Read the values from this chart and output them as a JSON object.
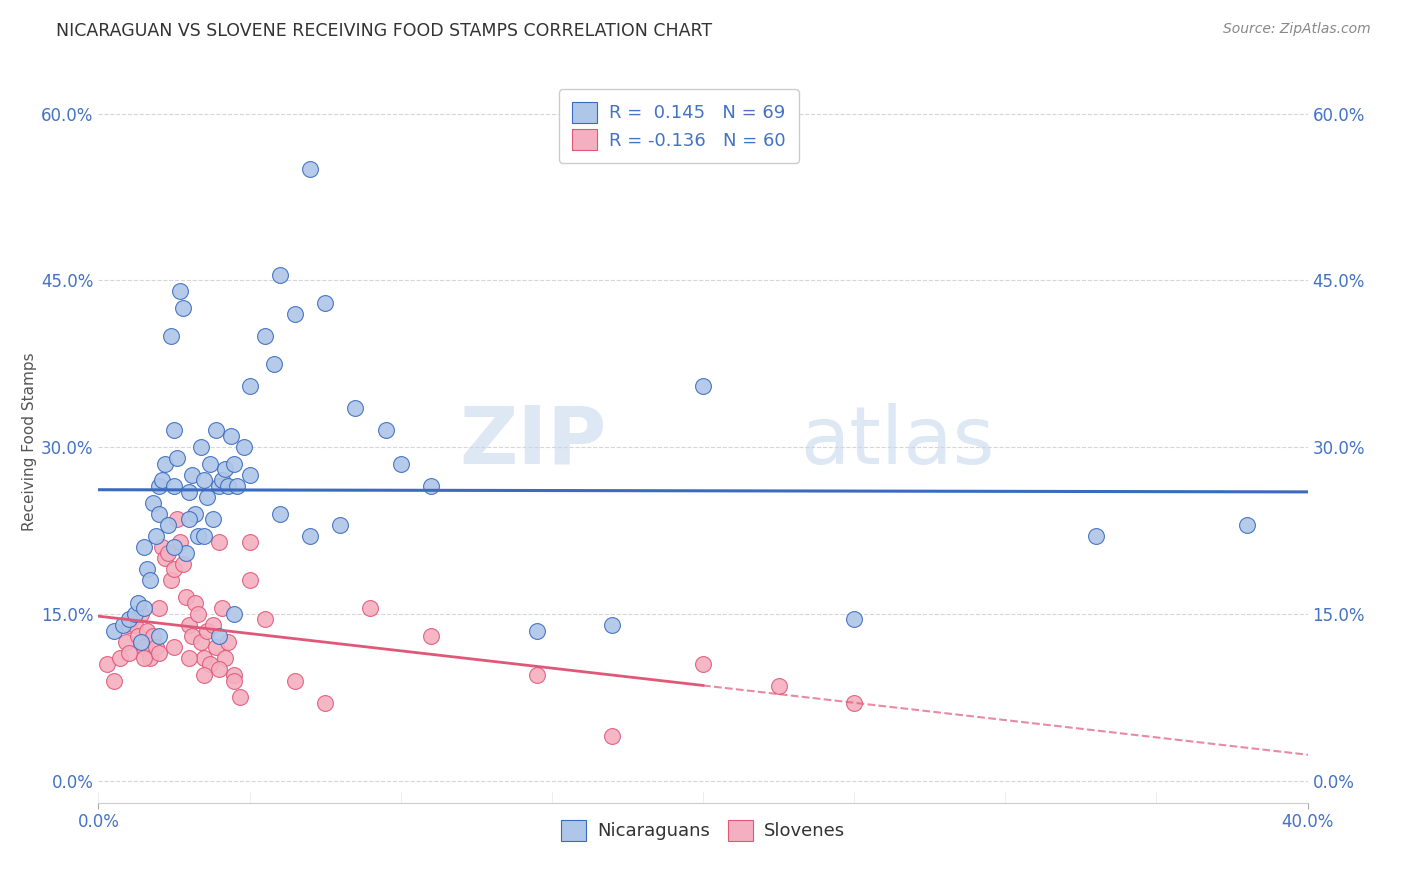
{
  "title": "NICARAGUAN VS SLOVENE RECEIVING FOOD STAMPS CORRELATION CHART",
  "source": "Source: ZipAtlas.com",
  "ylabel": "Receiving Food Stamps",
  "ytick_vals": [
    0.0,
    15.0,
    30.0,
    45.0,
    60.0
  ],
  "xmin": 0.0,
  "xmax": 40.0,
  "ymin": -2.0,
  "ymax": 63.0,
  "nicaraguan_R": 0.145,
  "nicaraguan_N": 69,
  "slovene_R": -0.136,
  "slovene_N": 60,
  "nicaraguan_color": "#aec6e8",
  "slovene_color": "#f4afc0",
  "nicaraguan_line_color": "#3a6bbf",
  "slovene_line_color": "#e05878",
  "background_color": "#ffffff",
  "grid_color": "#cccccc",
  "watermark_zip": "ZIP",
  "watermark_atlas": "atlas",
  "nicaraguan_x": [
    0.5,
    0.8,
    1.0,
    1.2,
    1.3,
    1.4,
    1.5,
    1.6,
    1.7,
    1.8,
    1.9,
    2.0,
    2.0,
    2.1,
    2.2,
    2.3,
    2.4,
    2.5,
    2.5,
    2.6,
    2.7,
    2.8,
    2.9,
    3.0,
    3.1,
    3.2,
    3.3,
    3.4,
    3.5,
    3.6,
    3.7,
    3.8,
    3.9,
    4.0,
    4.1,
    4.2,
    4.3,
    4.4,
    4.5,
    4.6,
    4.8,
    5.0,
    5.5,
    5.8,
    6.0,
    6.5,
    7.0,
    7.5,
    8.5,
    9.5,
    10.0,
    11.0,
    14.5,
    17.0,
    20.0,
    25.0,
    33.0,
    38.0,
    1.5,
    2.0,
    2.5,
    3.0,
    3.5,
    4.0,
    4.5,
    5.0,
    6.0,
    7.0,
    8.0
  ],
  "nicaraguan_y": [
    13.5,
    14.0,
    14.5,
    15.0,
    16.0,
    12.5,
    21.0,
    19.0,
    18.0,
    25.0,
    22.0,
    24.0,
    26.5,
    27.0,
    28.5,
    23.0,
    40.0,
    26.5,
    31.5,
    29.0,
    44.0,
    42.5,
    20.5,
    26.0,
    27.5,
    24.0,
    22.0,
    30.0,
    27.0,
    25.5,
    28.5,
    23.5,
    31.5,
    26.5,
    27.0,
    28.0,
    26.5,
    31.0,
    28.5,
    26.5,
    30.0,
    35.5,
    40.0,
    37.5,
    45.5,
    42.0,
    55.0,
    43.0,
    33.5,
    31.5,
    28.5,
    26.5,
    13.5,
    14.0,
    35.5,
    14.5,
    22.0,
    23.0,
    15.5,
    13.0,
    21.0,
    23.5,
    22.0,
    13.0,
    15.0,
    27.5,
    24.0,
    22.0,
    23.0
  ],
  "slovene_x": [
    0.3,
    0.5,
    0.7,
    0.9,
    1.0,
    1.1,
    1.2,
    1.3,
    1.4,
    1.5,
    1.6,
    1.7,
    1.8,
    1.9,
    2.0,
    2.1,
    2.2,
    2.3,
    2.4,
    2.5,
    2.6,
    2.7,
    2.8,
    2.9,
    3.0,
    3.1,
    3.2,
    3.3,
    3.4,
    3.5,
    3.6,
    3.7,
    3.8,
    3.9,
    4.0,
    4.1,
    4.2,
    4.3,
    4.5,
    4.7,
    5.0,
    5.5,
    6.5,
    7.5,
    9.0,
    11.0,
    14.5,
    17.0,
    20.0,
    22.5,
    25.0,
    1.0,
    1.5,
    2.0,
    2.5,
    3.0,
    3.5,
    4.0,
    4.5,
    5.0
  ],
  "slovene_y": [
    10.5,
    9.0,
    11.0,
    12.5,
    14.0,
    14.5,
    14.0,
    13.0,
    15.0,
    12.0,
    13.5,
    11.0,
    13.0,
    12.0,
    15.5,
    21.0,
    20.0,
    20.5,
    18.0,
    19.0,
    23.5,
    21.5,
    19.5,
    16.5,
    14.0,
    13.0,
    16.0,
    15.0,
    12.5,
    11.0,
    13.5,
    10.5,
    14.0,
    12.0,
    21.5,
    15.5,
    11.0,
    12.5,
    9.5,
    7.5,
    18.0,
    14.5,
    9.0,
    7.0,
    15.5,
    13.0,
    9.5,
    4.0,
    10.5,
    8.5,
    7.0,
    11.5,
    11.0,
    11.5,
    12.0,
    11.0,
    9.5,
    10.0,
    9.0,
    21.5
  ]
}
